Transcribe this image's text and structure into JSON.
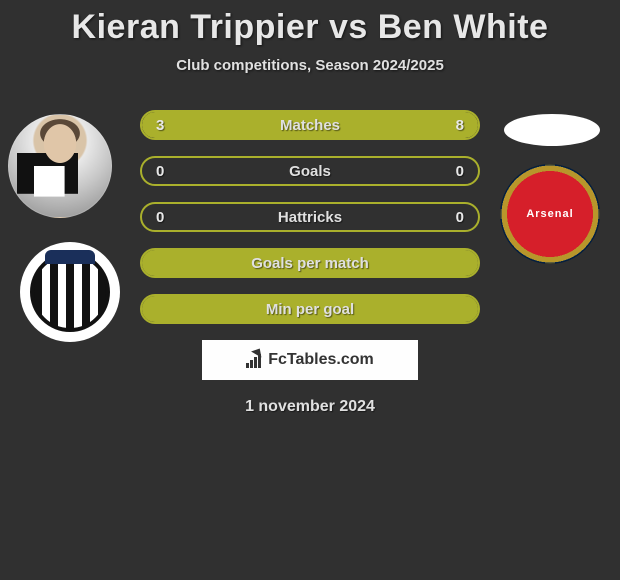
{
  "title": "Kieran Trippier vs Ben White",
  "subtitle": "Club competitions, Season 2024/2025",
  "date": "1 november 2024",
  "brand": "FcTables.com",
  "club_right_label": "Arsenal",
  "colors": {
    "bar_border": "#aab02c",
    "bar_fill": "#aab02c",
    "background": "#303030",
    "arsenal_red": "#d61f2a",
    "arsenal_gold": "#b8962b",
    "arsenal_navy": "#062a55"
  },
  "bars": [
    {
      "label": "Matches",
      "left": "3",
      "right": "8",
      "left_pct": 27,
      "right_pct": 73,
      "show_values": true
    },
    {
      "label": "Goals",
      "left": "0",
      "right": "0",
      "left_pct": 0,
      "right_pct": 0,
      "show_values": true
    },
    {
      "label": "Hattricks",
      "left": "0",
      "right": "0",
      "left_pct": 0,
      "right_pct": 0,
      "show_values": true
    },
    {
      "label": "Goals per match",
      "left": "",
      "right": "",
      "left_pct": 100,
      "right_pct": 0,
      "show_values": false,
      "full": true
    },
    {
      "label": "Min per goal",
      "left": "",
      "right": "",
      "left_pct": 100,
      "right_pct": 0,
      "show_values": false,
      "full": true
    }
  ]
}
